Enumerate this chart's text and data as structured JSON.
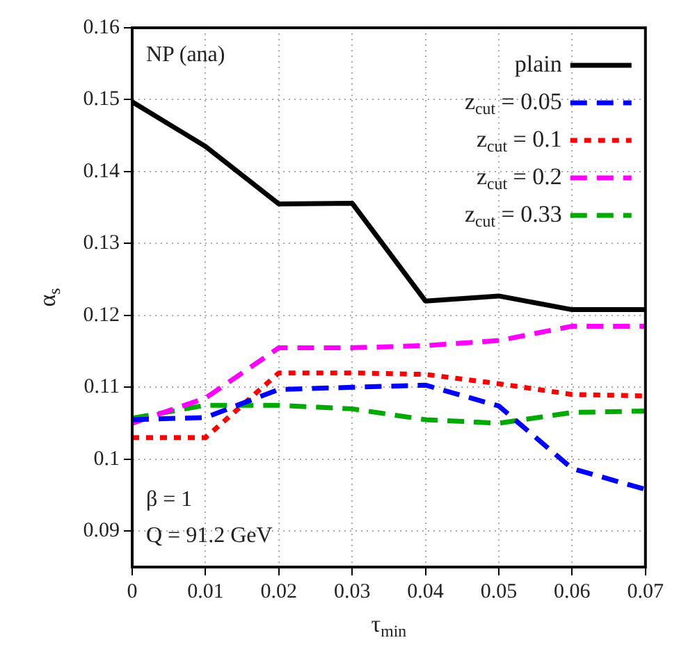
{
  "chart_data": {
    "type": "line",
    "xlabel": "τ$_{min}$",
    "ylabel": "α$_{s}$",
    "annotations": [
      "NP (ana)",
      "β = 1",
      "Q = 91.2 GeV"
    ],
    "x": [
      0,
      0.01,
      0.02,
      0.03,
      0.04,
      0.05,
      0.06,
      0.07
    ],
    "xlim": [
      0,
      0.07
    ],
    "xticks": [
      0,
      0.01,
      0.02,
      0.03,
      0.04,
      0.05,
      0.06,
      0.07
    ],
    "ylim": [
      0.085,
      0.16
    ],
    "yticks": [
      0.09,
      0.1,
      0.11,
      0.12,
      0.13,
      0.14,
      0.15,
      0.16
    ],
    "grid": true,
    "legend": "top right",
    "marker": "none",
    "series": [
      {
        "name": "plain",
        "color": "#000000",
        "line_style": "solid",
        "values": [
          0.1497,
          0.1435,
          0.1355,
          0.1356,
          0.122,
          0.1227,
          0.1208,
          0.1208
        ]
      },
      {
        "name": "z$_{cut}$ = 0.05",
        "color": "#0000ff",
        "line_style": "dashed",
        "values": [
          0.1055,
          0.1058,
          0.1097,
          0.11,
          0.1103,
          0.1074,
          0.0987,
          0.0958
        ]
      },
      {
        "name": "z$_{cut}$ = 0.1",
        "color": "#ff0000",
        "line_style": "dotted",
        "values": [
          0.103,
          0.103,
          0.112,
          0.112,
          0.1118,
          0.1105,
          0.109,
          0.1088
        ]
      },
      {
        "name": "z$_{cut}$ = 0.2",
        "color": "#ff00ff",
        "line_style": "dashed",
        "values": [
          0.105,
          0.1085,
          0.1155,
          0.1155,
          0.1158,
          0.1165,
          0.1185,
          0.1185
        ]
      },
      {
        "name": "z$_{cut}$ = 0.33",
        "color": "#00aa00",
        "line_style": "dashed",
        "values": [
          0.1057,
          0.1075,
          0.1075,
          0.107,
          0.1055,
          0.105,
          0.1065,
          0.1067
        ]
      }
    ]
  }
}
